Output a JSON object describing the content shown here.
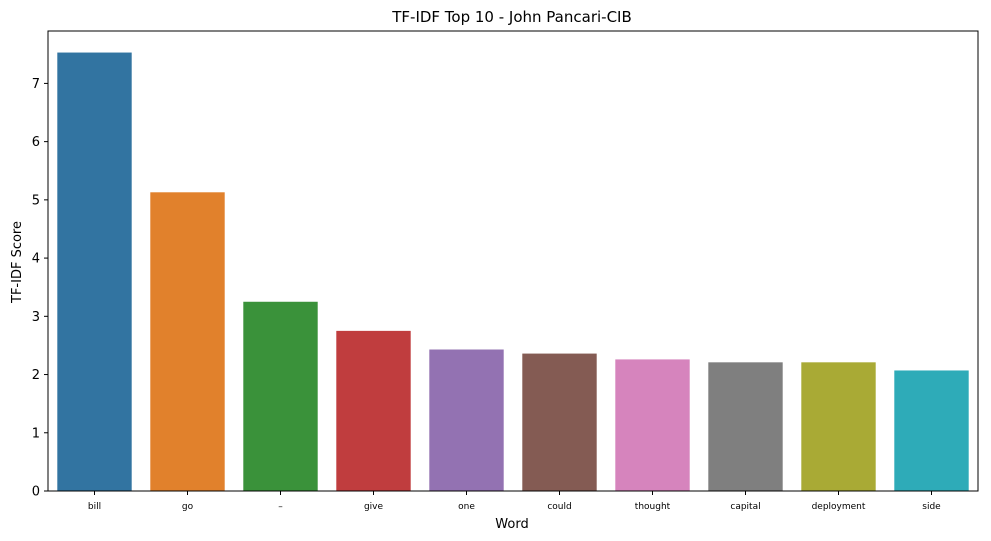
{
  "chart_data": {
    "type": "bar",
    "title": "TF-IDF Top 10 - John Pancari-CIB",
    "xlabel": "Word",
    "ylabel": "TF-IDF Score",
    "categories": [
      "bill",
      "go",
      "–",
      "give",
      "one",
      "could",
      "thought",
      "capital",
      "deployment",
      "side"
    ],
    "values": [
      7.53,
      5.13,
      3.25,
      2.75,
      2.43,
      2.36,
      2.26,
      2.21,
      2.21,
      2.07
    ],
    "colors": [
      "#3274a1",
      "#e1812c",
      "#3a923a",
      "#c03d3e",
      "#9372b2",
      "#845b53",
      "#d684bd",
      "#7f7f7f",
      "#a9aa35",
      "#2eabb8"
    ],
    "yticks": [
      0,
      1,
      2,
      3,
      4,
      5,
      6,
      7
    ],
    "ylim": [
      0,
      7.9
    ],
    "grid": false,
    "legend": "none"
  }
}
